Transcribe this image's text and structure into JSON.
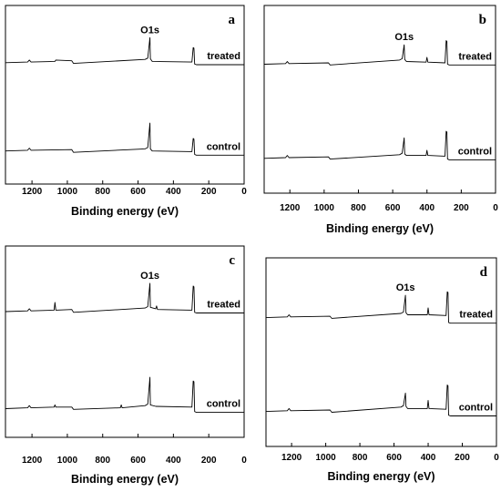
{
  "chart_data": [
    {
      "type": "line",
      "panel_label": "a",
      "xlabel": "Binding energy (eV)",
      "xlim": [
        1350,
        0
      ],
      "xticks": [
        1200,
        1000,
        800,
        600,
        400,
        200,
        0
      ],
      "annotation": "O1s",
      "series": [
        {
          "name": "treated",
          "x": [
            1350,
            1225,
            1215,
            1205,
            1070,
            1065,
            975,
            965,
            560,
            545,
            533,
            530,
            520,
            295,
            288,
            284,
            280,
            270,
            0
          ],
          "y": [
            0.62,
            0.63,
            0.66,
            0.63,
            0.64,
            0.66,
            0.65,
            0.61,
            0.67,
            0.69,
            1.0,
            0.68,
            0.64,
            0.63,
            0.85,
            0.84,
            0.6,
            0.59,
            0.59
          ]
        },
        {
          "name": "control",
          "x": [
            1350,
            1225,
            1215,
            1205,
            975,
            965,
            560,
            545,
            533,
            530,
            520,
            295,
            288,
            284,
            280,
            270,
            0
          ],
          "y": [
            0.27,
            0.28,
            0.31,
            0.28,
            0.29,
            0.25,
            0.3,
            0.32,
            0.67,
            0.3,
            0.27,
            0.26,
            0.45,
            0.44,
            0.22,
            0.21,
            0.21
          ]
        }
      ]
    },
    {
      "type": "line",
      "panel_label": "b",
      "xlabel": "Binding energy (eV)",
      "xlim": [
        1350,
        0
      ],
      "xticks": [
        1200,
        1000,
        800,
        600,
        400,
        200,
        0
      ],
      "annotation": "O1s",
      "series": [
        {
          "name": "treated",
          "x": [
            1350,
            1225,
            1215,
            1205,
            975,
            965,
            560,
            545,
            533,
            530,
            520,
            405,
            400,
            395,
            295,
            288,
            284,
            280,
            270,
            0
          ],
          "y": [
            0.64,
            0.65,
            0.68,
            0.65,
            0.66,
            0.63,
            0.7,
            0.72,
            0.92,
            0.71,
            0.68,
            0.67,
            0.74,
            0.67,
            0.66,
            0.98,
            0.97,
            0.64,
            0.63,
            0.63
          ]
        },
        {
          "name": "control",
          "x": [
            1350,
            1225,
            1215,
            1205,
            975,
            965,
            560,
            545,
            533,
            530,
            520,
            405,
            400,
            395,
            295,
            288,
            284,
            280,
            270,
            0
          ],
          "y": [
            0.27,
            0.28,
            0.31,
            0.28,
            0.29,
            0.26,
            0.32,
            0.34,
            0.55,
            0.33,
            0.31,
            0.31,
            0.38,
            0.31,
            0.3,
            0.64,
            0.63,
            0.26,
            0.25,
            0.25
          ]
        }
      ]
    },
    {
      "type": "line",
      "panel_label": "c",
      "xlabel": "Binding energy (eV)",
      "xlim": [
        1350,
        0
      ],
      "xticks": [
        1200,
        1000,
        800,
        600,
        400,
        200,
        0
      ],
      "annotation": "O1s",
      "series": [
        {
          "name": "treated",
          "x": [
            1350,
            1225,
            1215,
            1205,
            1075,
            1070,
            1065,
            975,
            965,
            560,
            545,
            533,
            530,
            500,
            495,
            490,
            295,
            288,
            284,
            280,
            270,
            0
          ],
          "y": [
            0.56,
            0.57,
            0.6,
            0.57,
            0.58,
            0.69,
            0.58,
            0.59,
            0.55,
            0.61,
            0.63,
            0.96,
            0.62,
            0.6,
            0.64,
            0.59,
            0.58,
            0.92,
            0.91,
            0.55,
            0.54,
            0.54
          ]
        },
        {
          "name": "control",
          "x": [
            1350,
            1225,
            1215,
            1205,
            1075,
            1070,
            1065,
            975,
            965,
            700,
            695,
            690,
            560,
            545,
            533,
            530,
            500,
            295,
            288,
            284,
            280,
            270,
            0
          ],
          "y": [
            0.18,
            0.19,
            0.22,
            0.19,
            0.2,
            0.23,
            0.2,
            0.2,
            0.17,
            0.19,
            0.23,
            0.19,
            0.22,
            0.24,
            0.6,
            0.23,
            0.21,
            0.2,
            0.55,
            0.54,
            0.14,
            0.13,
            0.13
          ]
        }
      ]
    },
    {
      "type": "line",
      "panel_label": "d",
      "xlabel": "Binding energy (eV)",
      "xlim": [
        1350,
        0
      ],
      "xticks": [
        1200,
        1000,
        800,
        600,
        400,
        200,
        0
      ],
      "annotation": "O1s",
      "series": [
        {
          "name": "treated",
          "x": [
            1350,
            1225,
            1215,
            1205,
            975,
            965,
            560,
            545,
            533,
            530,
            520,
            405,
            400,
            395,
            295,
            288,
            284,
            280,
            270,
            0
          ],
          "y": [
            0.63,
            0.64,
            0.67,
            0.64,
            0.65,
            0.62,
            0.69,
            0.71,
            0.95,
            0.7,
            0.67,
            0.67,
            0.77,
            0.67,
            0.66,
            1.0,
            0.99,
            0.56,
            0.55,
            0.55
          ]
        },
        {
          "name": "control",
          "x": [
            1350,
            1225,
            1215,
            1205,
            975,
            965,
            560,
            545,
            533,
            530,
            520,
            405,
            400,
            395,
            295,
            288,
            284,
            280,
            270,
            0
          ],
          "y": [
            0.27,
            0.28,
            0.31,
            0.28,
            0.29,
            0.26,
            0.33,
            0.35,
            0.52,
            0.34,
            0.31,
            0.31,
            0.42,
            0.31,
            0.3,
            0.63,
            0.62,
            0.22,
            0.21,
            0.21
          ]
        }
      ]
    }
  ]
}
